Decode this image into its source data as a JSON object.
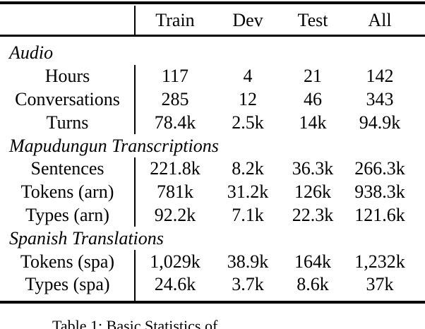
{
  "table": {
    "header": {
      "cols": [
        "Train",
        "Dev",
        "Test",
        "All"
      ]
    },
    "rows": [
      {
        "type": "section",
        "label": "Audio"
      },
      {
        "type": "data",
        "label": "Hours",
        "values": [
          "117",
          "4",
          "21",
          "142"
        ]
      },
      {
        "type": "data",
        "label": "Conversations",
        "values": [
          "285",
          "12",
          "46",
          "343"
        ]
      },
      {
        "type": "data",
        "label": "Turns",
        "values": [
          "78.4k",
          "2.5k",
          "14k",
          "94.9k"
        ]
      },
      {
        "type": "section",
        "label": "Mapudungun Transcriptions"
      },
      {
        "type": "data",
        "label": "Sentences",
        "values": [
          "221.8k",
          "8.2k",
          "36.3k",
          "266.3k"
        ]
      },
      {
        "type": "data",
        "label": "Tokens (arn)",
        "values": [
          "781k",
          "31.2k",
          "126k",
          "938.3k"
        ]
      },
      {
        "type": "data",
        "label": "Types (arn)",
        "values": [
          "92.2k",
          "7.1k",
          "22.3k",
          "121.6k"
        ]
      },
      {
        "type": "section",
        "label": "Spanish Translations"
      },
      {
        "type": "data",
        "label": "Tokens (spa)",
        "values": [
          "1,029k",
          "38.9k",
          "164k",
          "1,232k"
        ]
      },
      {
        "type": "data",
        "label": "Types (spa)",
        "values": [
          "24.6k",
          "3.7k",
          "8.6k",
          "37k"
        ]
      }
    ]
  },
  "caption": "Table 1: Basic Statistics of",
  "colors": {
    "text": "#000000",
    "background": "#ffffff",
    "rule": "#000000"
  }
}
